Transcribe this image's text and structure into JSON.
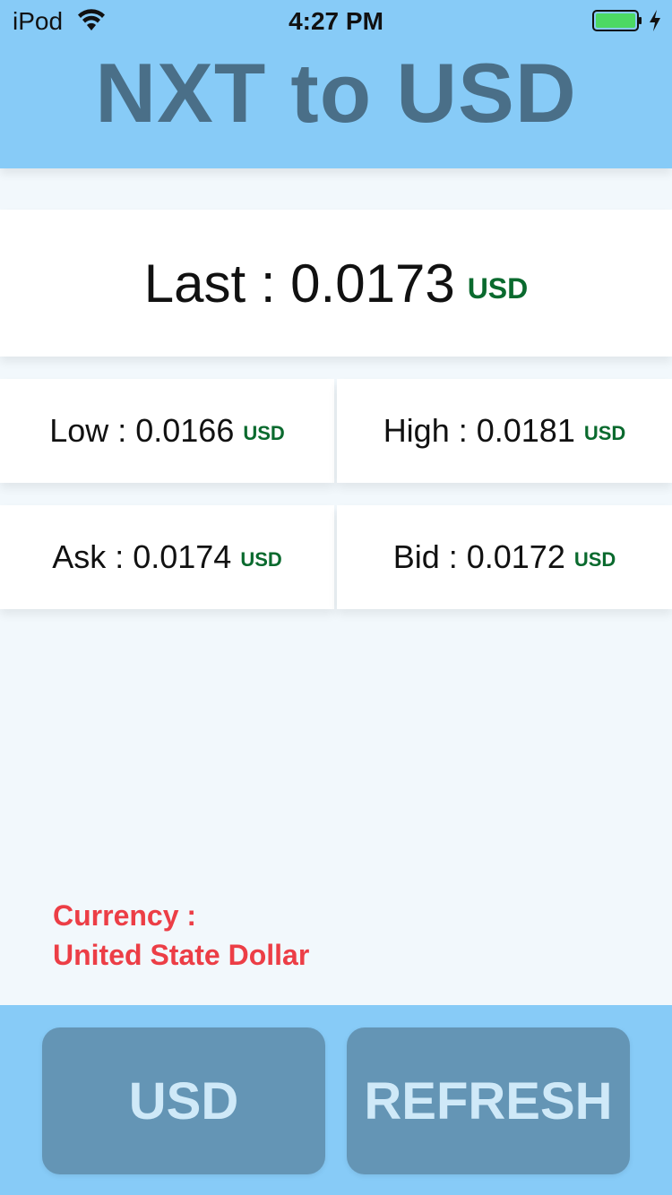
{
  "status_bar": {
    "carrier": "iPod",
    "time": "4:27 PM",
    "wifi_icon": "wifi-icon",
    "battery_icon": "battery-icon",
    "charging_icon": "charging-icon",
    "battery_color": "#4cd964"
  },
  "header": {
    "title": "NXT to USD",
    "background": "#87cbf7",
    "title_color": "#4a6f88"
  },
  "last": {
    "label": "Last : 0.0173",
    "unit": "USD"
  },
  "stats": {
    "low": {
      "label": "Low : 0.0166",
      "unit": "USD"
    },
    "high": {
      "label": "High : 0.0181",
      "unit": "USD"
    },
    "ask": {
      "label": "Ask : 0.0174",
      "unit": "USD"
    },
    "bid": {
      "label": "Bid : 0.0172",
      "unit": "USD"
    }
  },
  "currency": {
    "label": "Currency :",
    "name": "United State Dollar",
    "color": "#ec3e46"
  },
  "buttons": {
    "currency_label": "USD",
    "refresh_label": "REFRESH"
  },
  "colors": {
    "unit": "#0a6a2e",
    "button": "#6495b5",
    "button_text": "#cfe9f8"
  }
}
